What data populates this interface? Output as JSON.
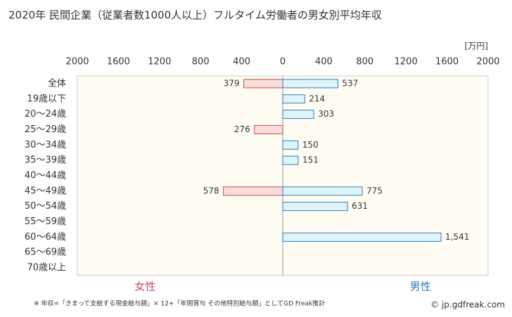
{
  "chart_data": {
    "type": "butterfly_bar",
    "title": "2020年 民間企業（従業者数1000人以上）フルタイム労働者の男女別平均年収",
    "unit_label": "[万円]",
    "categories": [
      "全体",
      "19歳以下",
      "20～24歳",
      "25～29歳",
      "30～34歳",
      "35～39歳",
      "40～44歳",
      "45～49歳",
      "50～54歳",
      "55～59歳",
      "60～64歳",
      "65～69歳",
      "70歳以上"
    ],
    "series": [
      {
        "name": "女性",
        "side": "left",
        "color": "#c0504d",
        "fill": "#f9dcdc",
        "values": [
          379,
          null,
          null,
          276,
          null,
          null,
          null,
          578,
          null,
          null,
          null,
          null,
          null
        ]
      },
      {
        "name": "男性",
        "side": "right",
        "color": "#2e7db5",
        "fill": "#dff3fb",
        "values": [
          537,
          214,
          303,
          null,
          150,
          151,
          null,
          775,
          631,
          null,
          1541,
          null,
          null
        ],
        "value_labels": [
          "537",
          "214",
          "303",
          null,
          "150",
          "151",
          null,
          "775",
          "631",
          null,
          "1,541",
          null,
          null
        ]
      }
    ],
    "xlim": [
      0,
      2000
    ],
    "xticks": [
      0,
      400,
      800,
      1200,
      1600,
      2000
    ],
    "footnote": "※ 年収=「きまって支給する現金給与額」× 12+「年間賞与 その他特別給与額」としてGD Freak推計",
    "credit": "© jp.gdfreak.com"
  }
}
